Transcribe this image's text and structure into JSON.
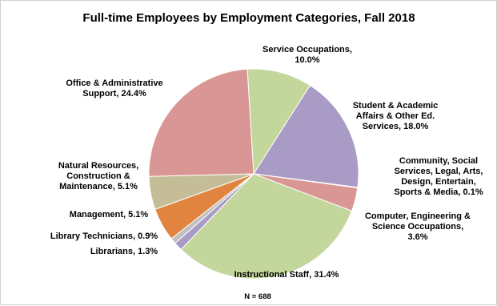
{
  "chart_data": {
    "type": "pie",
    "title": "Full-time Employees by Employment Categories, Fall 2018",
    "note": "N = 688",
    "slices": [
      {
        "label": "Service Occupations, 10.0%",
        "category": "Service Occupations",
        "value": 10.0,
        "color": "#c3d69b"
      },
      {
        "label": "Student & Academic Affairs & Other Ed. Services, 18.0%",
        "category": "Student & Academic Affairs & Other Ed. Services",
        "value": 18.0,
        "color": "#a89bc5"
      },
      {
        "label": "Community, Social Services, Legal, Arts, Design, Entertain, Sports & Media, 0.1%",
        "category": "Community, Social Services, Legal, Arts, Design, Entertain, Sports & Media",
        "value": 0.1,
        "color": "#4a6d8c"
      },
      {
        "label": "Computer, Engineering & Science Occupations, 3.6%",
        "category": "Computer, Engineering & Science Occupations",
        "value": 3.6,
        "color": "#d99694"
      },
      {
        "label": "Instructional Staff, 31.4%",
        "category": "Instructional Staff",
        "value": 31.4,
        "color": "#c3d69b"
      },
      {
        "label": "Librarians, 1.3%",
        "category": "Librarians",
        "value": 1.3,
        "color": "#a89bc5"
      },
      {
        "label": "Library Technicians, 0.9%",
        "category": "Library Technicians",
        "value": 0.9,
        "color": "#bfbfbf"
      },
      {
        "label": "Management, 5.1%",
        "category": "Management",
        "value": 5.1,
        "color": "#e0843f"
      },
      {
        "label": "Natural Resources, Construction & Maintenance, 5.1%",
        "category": "Natural Resources, Construction & Maintenance",
        "value": 5.1,
        "color": "#c4bd97"
      },
      {
        "label": "Office & Administrative Support, 24.4%",
        "category": "Office & Administrative Support",
        "value": 24.4,
        "color": "#d99694"
      }
    ],
    "label_lines": [
      [
        "Service Occupations,",
        "10.0%"
      ],
      [
        "Student & Academic",
        "Affairs & Other Ed.",
        "Services, 18.0%"
      ],
      [
        "Community, Social",
        "Services, Legal, Arts,",
        "Design, Entertain,",
        "Sports & Media, 0.1%"
      ],
      [
        "Computer, Engineering &",
        "Science Occupations,",
        "3.6%"
      ],
      [
        "Instructional Staff, 31.4%"
      ],
      [
        "Librarians, 1.3%"
      ],
      [
        "Library Technicians, 0.9%"
      ],
      [
        "Management, 5.1%"
      ],
      [
        "Natural Resources,",
        "Construction &",
        "Maintenance, 5.1%"
      ],
      [
        "Office & Administrative",
        "Support, 24.4%"
      ]
    ]
  }
}
